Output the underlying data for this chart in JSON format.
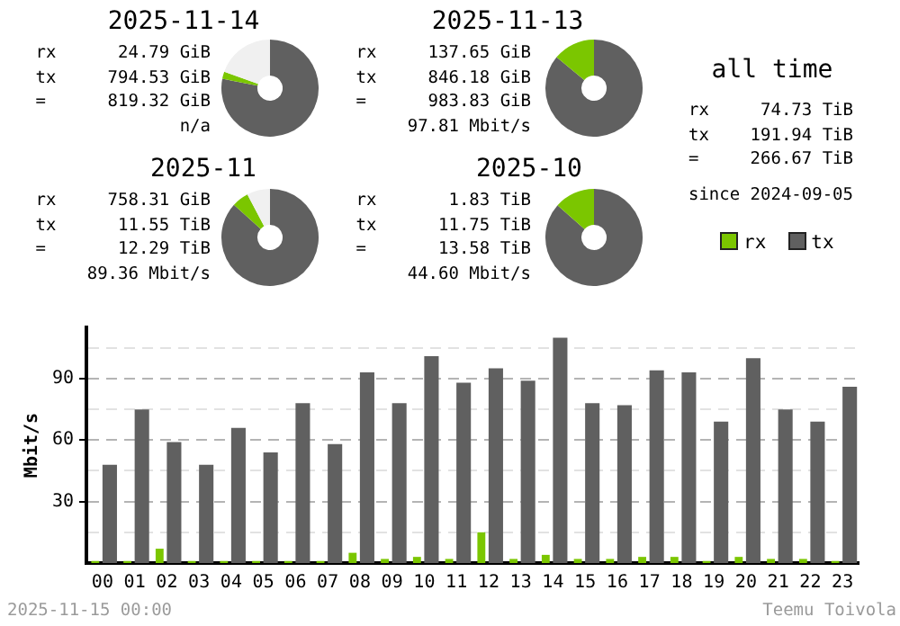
{
  "chart_data": [
    {
      "type": "donut",
      "title": "2025-11-14",
      "categories": [
        null,
        null,
        null
      ],
      "values": [
        78.1,
        2.4,
        19.5
      ],
      "colors": [
        "#606060",
        "#7bc600",
        "#f0f0f0"
      ],
      "annotations": [
        "rx      24.79 GiB",
        "tx     794.53 GiB",
        "=      819.32 GiB",
        "n/a"
      ]
    },
    {
      "type": "donut",
      "title": "2025-11-13",
      "categories": [
        null,
        null
      ],
      "values": [
        86.0,
        14.0
      ],
      "colors": [
        "#606060",
        "#7bc600"
      ],
      "annotations": [
        "rx     137.65 GiB",
        "tx     846.18 GiB",
        "=      983.83 GiB",
        "97.81 Mbit/s"
      ]
    },
    {
      "type": "other",
      "title": "all time",
      "annotations": [
        "rx     74.73 TiB",
        "tx    191.94 TiB",
        "=     266.67 TiB",
        "since 2024-09-05"
      ]
    },
    {
      "type": "donut",
      "title": "2025-11",
      "categories": [
        null,
        null,
        null
      ],
      "values": [
        86.7,
        5.6,
        7.7
      ],
      "colors": [
        "#606060",
        "#7bc600",
        "#f0f0f0"
      ],
      "annotations": [
        "rx     758.31 GiB",
        "tx      11.55 TiB",
        "=       12.29 TiB",
        "89.36 Mbit/s"
      ]
    },
    {
      "type": "donut",
      "title": "2025-10",
      "categories": [
        null,
        null
      ],
      "values": [
        86.5,
        13.5
      ],
      "colors": [
        "#606060",
        "#7bc600"
      ],
      "annotations": [
        "rx       1.83 TiB",
        "tx      11.75 TiB",
        "=       13.58 TiB",
        "44.60 Mbit/s"
      ]
    },
    {
      "type": "bar",
      "ylabel": "Mbit/s",
      "categories": [
        "00",
        "01",
        "02",
        "03",
        "04",
        "05",
        "06",
        "07",
        "08",
        "09",
        "10",
        "11",
        "12",
        "13",
        "14",
        "15",
        "16",
        "17",
        "18",
        "19",
        "20",
        "21",
        "22",
        "23"
      ],
      "series": [
        {
          "name": "rx",
          "color": "#7bc600",
          "values": [
            1,
            1,
            7,
            1,
            1,
            1,
            1,
            1,
            5,
            2,
            3,
            2,
            15,
            2,
            4,
            2,
            2,
            3,
            3,
            1,
            3,
            2,
            2,
            1
          ]
        },
        {
          "name": "tx",
          "color": "#606060",
          "values": [
            48,
            75,
            59,
            48,
            66,
            54,
            78,
            58,
            93,
            78,
            101,
            88,
            95,
            89,
            110,
            78,
            77,
            94,
            93,
            69,
            100,
            75,
            69,
            86
          ]
        }
      ],
      "ylim": [
        0,
        115
      ],
      "yticks": [
        {
          "value": 15,
          "label": null
        },
        30,
        {
          "value": 45,
          "label": null
        },
        60,
        {
          "value": 75,
          "label": null
        },
        90,
        {
          "value": 105,
          "label": null
        }
      ],
      "grid": "y",
      "legend": "top right",
      "annotations": [
        "2025-11-15 00:00",
        "Teemu Toivola"
      ]
    }
  ]
}
